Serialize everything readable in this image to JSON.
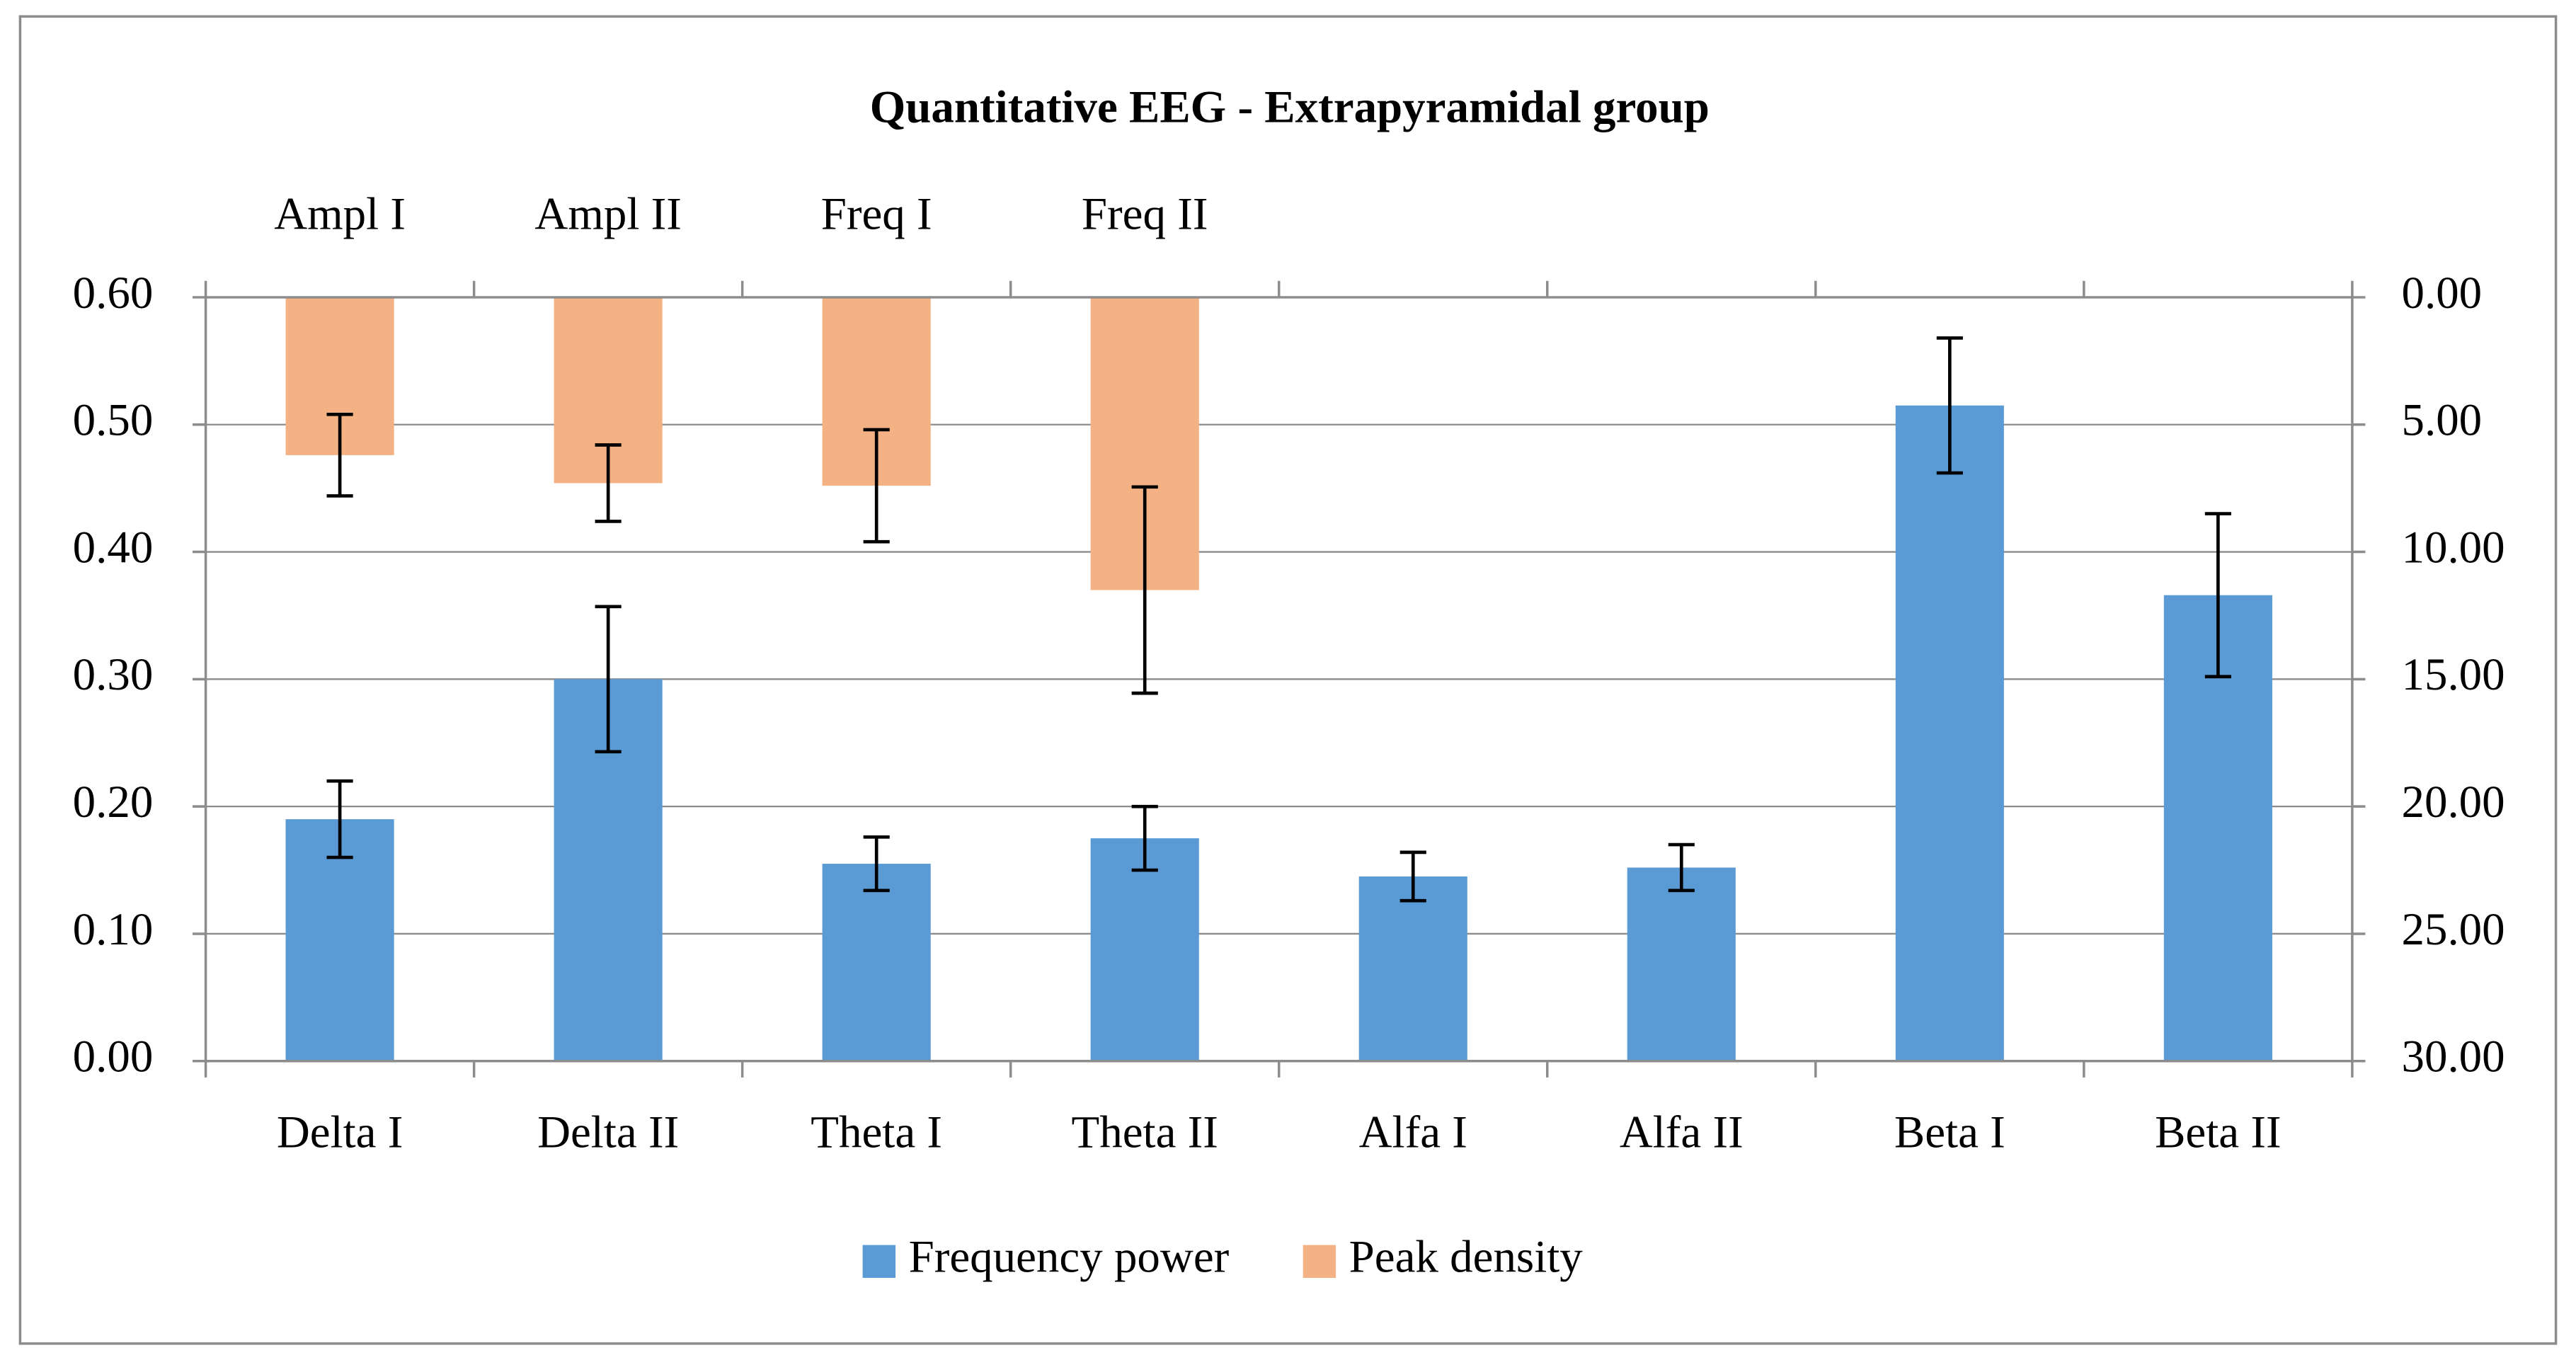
{
  "chart_data": {
    "type": "bar",
    "title": "Quantitative EEG - Extrapyramidal group",
    "categories": [
      "Delta I",
      "Delta II",
      "Theta I",
      "Theta II",
      "Alfa I",
      "Alfa II",
      "Beta I",
      "Beta II"
    ],
    "top_categories": [
      "Ampl I",
      "Ampl II",
      "Freq I",
      "Freq II",
      null,
      null,
      null,
      null
    ],
    "series": [
      {
        "name": "Frequency power",
        "color": "#5b9bd5",
        "axis": "y",
        "values": [
          0.19,
          0.3,
          0.155,
          0.175,
          0.145,
          0.152,
          0.515,
          0.366
        ],
        "errors": [
          0.03,
          0.057,
          0.021,
          0.025,
          0.019,
          0.018,
          0.053,
          0.064
        ]
      },
      {
        "name": "Peak density",
        "color": "#f4b183",
        "axis": "y2",
        "values": [
          6.2,
          7.3,
          7.4,
          11.5,
          null,
          null,
          null,
          null
        ],
        "errors": [
          1.6,
          1.5,
          2.2,
          4.05,
          null,
          null,
          null,
          null
        ]
      }
    ],
    "ylim": [
      0,
      0.6
    ],
    "yticks": [
      {
        "value": 0,
        "label": "0.00"
      },
      {
        "value": 0.1,
        "label": "0.10"
      },
      {
        "value": 0.2,
        "label": "0.20"
      },
      {
        "value": 0.3,
        "label": "0.30"
      },
      {
        "value": 0.4,
        "label": "0.40"
      },
      {
        "value": 0.5,
        "label": "0.50"
      },
      {
        "value": 0.6,
        "label": "0.60"
      }
    ],
    "y2lim": [
      0,
      30
    ],
    "y2_reversed": true,
    "y2ticks": [
      {
        "value": 0,
        "label": "0.00"
      },
      {
        "value": 5,
        "label": "5.00"
      },
      {
        "value": 10,
        "label": "10.00"
      },
      {
        "value": 15,
        "label": "15.00"
      },
      {
        "value": 20,
        "label": "20.00"
      },
      {
        "value": 25,
        "label": "25.00"
      },
      {
        "value": 30,
        "label": "30.00"
      }
    ],
    "grid": true,
    "legend": "bottom"
  }
}
